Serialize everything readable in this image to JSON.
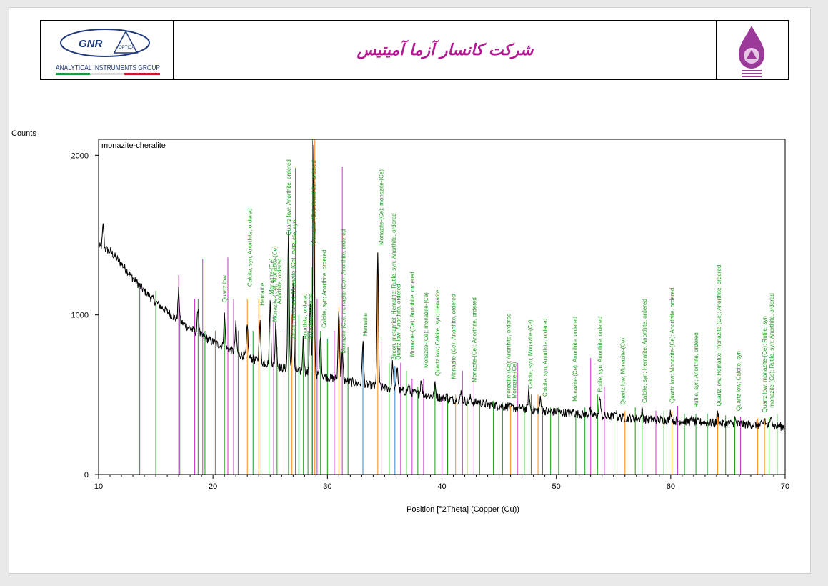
{
  "header": {
    "logo_brand": "GNR",
    "logo_sub": "OPTICA",
    "logo_group": "ANALYTICAL INSTRUMENTS GROUP",
    "company_name": "شرکت کانسار آزما آمیتیس"
  },
  "chart_data": {
    "type": "line",
    "title": "monazite-cheralite",
    "ylabel": "Counts",
    "xlabel": "Position [°2Theta] (Copper (Cu))",
    "xlim": [
      10,
      70
    ],
    "ylim": [
      0,
      2000
    ],
    "xticks": [
      10,
      20,
      30,
      40,
      50,
      60,
      70
    ],
    "yticks": [
      0,
      1000,
      2000
    ],
    "grid": false,
    "colors": {
      "trace": "#000000",
      "reference": "#1e9a1e",
      "label": "#1e9a1e"
    },
    "background_points": [
      [
        10,
        1430
      ],
      [
        11,
        1400
      ],
      [
        12,
        1320
      ],
      [
        13,
        1230
      ],
      [
        14,
        1150
      ],
      [
        15,
        1080
      ],
      [
        16,
        1020
      ],
      [
        17,
        965
      ],
      [
        18,
        915
      ],
      [
        19,
        870
      ],
      [
        20,
        830
      ],
      [
        21,
        795
      ],
      [
        22,
        765
      ],
      [
        23,
        735
      ],
      [
        24,
        710
      ],
      [
        25,
        690
      ],
      [
        26,
        670
      ],
      [
        28,
        640
      ],
      [
        30,
        610
      ],
      [
        32,
        580
      ],
      [
        34,
        555
      ],
      [
        36,
        530
      ],
      [
        38,
        505
      ],
      [
        40,
        480
      ],
      [
        42,
        460
      ],
      [
        44,
        440
      ],
      [
        46,
        420
      ],
      [
        48,
        405
      ],
      [
        50,
        390
      ],
      [
        52,
        378
      ],
      [
        54,
        365
      ],
      [
        56,
        355
      ],
      [
        58,
        345
      ],
      [
        60,
        338
      ],
      [
        62,
        330
      ],
      [
        64,
        322
      ],
      [
        66,
        316
      ],
      [
        68,
        310
      ],
      [
        70,
        300
      ]
    ],
    "peaks": [
      {
        "x": 10.4,
        "y": 1560
      },
      {
        "x": 17.0,
        "y": 1150
      },
      {
        "x": 18.7,
        "y": 1050
      },
      {
        "x": 21.0,
        "y": 1000
      },
      {
        "x": 22.0,
        "y": 940
      },
      {
        "x": 23.0,
        "y": 930
      },
      {
        "x": 24.1,
        "y": 960
      },
      {
        "x": 25.0,
        "y": 1080
      },
      {
        "x": 25.5,
        "y": 950
      },
      {
        "x": 26.6,
        "y": 1520
      },
      {
        "x": 27.0,
        "y": 1200
      },
      {
        "x": 27.9,
        "y": 860
      },
      {
        "x": 28.5,
        "y": 1100
      },
      {
        "x": 28.8,
        "y": 2050
      },
      {
        "x": 29.4,
        "y": 880
      },
      {
        "x": 31.0,
        "y": 1050
      },
      {
        "x": 31.3,
        "y": 760
      },
      {
        "x": 33.1,
        "y": 840
      },
      {
        "x": 34.4,
        "y": 1380
      },
      {
        "x": 35.7,
        "y": 700
      },
      {
        "x": 36.1,
        "y": 680
      },
      {
        "x": 37.1,
        "y": 560
      },
      {
        "x": 38.2,
        "y": 600
      },
      {
        "x": 39.4,
        "y": 560
      },
      {
        "x": 40.4,
        "y": 500
      },
      {
        "x": 41.7,
        "y": 520
      },
      {
        "x": 42.5,
        "y": 480
      },
      {
        "x": 43.2,
        "y": 460
      },
      {
        "x": 45.8,
        "y": 430
      },
      {
        "x": 46.9,
        "y": 420
      },
      {
        "x": 47.6,
        "y": 520
      },
      {
        "x": 48.6,
        "y": 470
      },
      {
        "x": 50.1,
        "y": 410
      },
      {
        "x": 51.5,
        "y": 400
      },
      {
        "x": 52.9,
        "y": 410
      },
      {
        "x": 53.8,
        "y": 490
      },
      {
        "x": 55.2,
        "y": 400
      },
      {
        "x": 57.5,
        "y": 400
      },
      {
        "x": 60.0,
        "y": 400
      },
      {
        "x": 61.9,
        "y": 360
      },
      {
        "x": 64.1,
        "y": 390
      },
      {
        "x": 65.6,
        "y": 350
      },
      {
        "x": 68.2,
        "y": 350
      },
      {
        "x": 68.8,
        "y": 380
      }
    ],
    "reference_lines": [
      {
        "x": 13.6,
        "h": 1200,
        "c": "#1e9a1e"
      },
      {
        "x": 15.0,
        "h": 1150,
        "c": "#1e9a1e"
      },
      {
        "x": 17.0,
        "h": 1250,
        "c": "#cc33cc"
      },
      {
        "x": 17.1,
        "h": 1000,
        "c": "#1e9a1e"
      },
      {
        "x": 18.4,
        "h": 1100,
        "c": "#cc33cc"
      },
      {
        "x": 18.7,
        "h": 1100,
        "c": "#1e9a1e"
      },
      {
        "x": 19.1,
        "h": 1350,
        "c": "#cc33cc"
      },
      {
        "x": 19.3,
        "h": 900,
        "c": "#1e9a1e"
      },
      {
        "x": 20.2,
        "h": 900,
        "c": "#2e8bd6"
      },
      {
        "x": 21.0,
        "h": 1000,
        "c": "#1e9a1e"
      },
      {
        "x": 21.3,
        "h": 1360,
        "c": "#cc33cc"
      },
      {
        "x": 21.8,
        "h": 1100,
        "c": "#cc33cc"
      },
      {
        "x": 22.2,
        "h": 900,
        "c": "#1e9a1e"
      },
      {
        "x": 23.0,
        "h": 1100,
        "c": "#ff8c1a"
      },
      {
        "x": 23.5,
        "h": 900,
        "c": "#1e9a1e"
      },
      {
        "x": 24.0,
        "h": 1100,
        "c": "#ff8c1a"
      },
      {
        "x": 24.2,
        "h": 1000,
        "c": "#1e9a1e"
      },
      {
        "x": 24.9,
        "h": 900,
        "c": "#1e9a1e"
      },
      {
        "x": 25.3,
        "h": 1000,
        "c": "#cc33cc"
      },
      {
        "x": 25.6,
        "h": 800,
        "c": "#1e9a1e"
      },
      {
        "x": 26.2,
        "h": 900,
        "c": "#cc33cc"
      },
      {
        "x": 26.6,
        "h": 1500,
        "c": "#1e9a1e"
      },
      {
        "x": 26.9,
        "h": 1000,
        "c": "#ff8c1a"
      },
      {
        "x": 27.2,
        "h": 1920,
        "c": "#cc33cc"
      },
      {
        "x": 27.5,
        "h": 1000,
        "c": "#1e9a1e"
      },
      {
        "x": 27.9,
        "h": 850,
        "c": "#1e9a1e"
      },
      {
        "x": 28.3,
        "h": 900,
        "c": "#1e9a1e"
      },
      {
        "x": 28.6,
        "h": 1300,
        "c": "#1e9a1e"
      },
      {
        "x": 28.7,
        "h": 2100,
        "c": "#cc33cc"
      },
      {
        "x": 28.9,
        "h": 2100,
        "c": "#ff8c1a"
      },
      {
        "x": 29.1,
        "h": 1100,
        "c": "#cc33cc"
      },
      {
        "x": 29.4,
        "h": 900,
        "c": "#1e9a1e"
      },
      {
        "x": 30.0,
        "h": 850,
        "c": "#1e9a1e"
      },
      {
        "x": 30.6,
        "h": 900,
        "c": "#cc33cc"
      },
      {
        "x": 31.0,
        "h": 1050,
        "c": "#ff8c1a"
      },
      {
        "x": 31.3,
        "h": 1930,
        "c": "#cc33cc"
      },
      {
        "x": 31.8,
        "h": 800,
        "c": "#1e9a1e"
      },
      {
        "x": 33.1,
        "h": 800,
        "c": "#2e8bd6"
      },
      {
        "x": 34.4,
        "h": 1380,
        "c": "#ff8c1a"
      },
      {
        "x": 34.7,
        "h": 850,
        "c": "#cc33cc"
      },
      {
        "x": 35.4,
        "h": 700,
        "c": "#1e9a1e"
      },
      {
        "x": 35.9,
        "h": 680,
        "c": "#2e8bd6"
      },
      {
        "x": 36.4,
        "h": 700,
        "c": "#cc33cc"
      },
      {
        "x": 36.9,
        "h": 650,
        "c": "#1e9a1e"
      },
      {
        "x": 37.4,
        "h": 600,
        "c": "#cc33cc"
      },
      {
        "x": 37.9,
        "h": 550,
        "c": "#1e9a1e"
      },
      {
        "x": 38.4,
        "h": 600,
        "c": "#cc33cc"
      },
      {
        "x": 39.4,
        "h": 570,
        "c": "#1e9a1e"
      },
      {
        "x": 40.0,
        "h": 500,
        "c": "#cc33cc"
      },
      {
        "x": 40.5,
        "h": 500,
        "c": "#1e9a1e"
      },
      {
        "x": 41.2,
        "h": 500,
        "c": "#ff8c1a"
      },
      {
        "x": 41.8,
        "h": 650,
        "c": "#cc33cc"
      },
      {
        "x": 42.2,
        "h": 480,
        "c": "#1e9a1e"
      },
      {
        "x": 42.8,
        "h": 700,
        "c": "#cc33cc"
      },
      {
        "x": 43.3,
        "h": 460,
        "c": "#1e9a1e"
      },
      {
        "x": 44.5,
        "h": 460,
        "c": "#1e9a1e"
      },
      {
        "x": 45.3,
        "h": 450,
        "c": "#1e9a1e"
      },
      {
        "x": 46.0,
        "h": 430,
        "c": "#ff8c1a"
      },
      {
        "x": 46.6,
        "h": 700,
        "c": "#cc33cc"
      },
      {
        "x": 47.2,
        "h": 430,
        "c": "#1e9a1e"
      },
      {
        "x": 47.8,
        "h": 500,
        "c": "#1e9a1e"
      },
      {
        "x": 48.4,
        "h": 500,
        "c": "#ff8c1a"
      },
      {
        "x": 48.8,
        "h": 430,
        "c": "#1e9a1e"
      },
      {
        "x": 49.5,
        "h": 420,
        "c": "#1e9a1e"
      },
      {
        "x": 50.2,
        "h": 420,
        "c": "#1e9a1e"
      },
      {
        "x": 51.7,
        "h": 400,
        "c": "#1e9a1e"
      },
      {
        "x": 52.5,
        "h": 420,
        "c": "#1e9a1e"
      },
      {
        "x": 53.0,
        "h": 730,
        "c": "#cc33cc"
      },
      {
        "x": 53.6,
        "h": 500,
        "c": "#1e9a1e"
      },
      {
        "x": 54.2,
        "h": 550,
        "c": "#cc33cc"
      },
      {
        "x": 55.3,
        "h": 400,
        "c": "#1e9a1e"
      },
      {
        "x": 56.0,
        "h": 400,
        "c": "#ff8c1a"
      },
      {
        "x": 56.9,
        "h": 420,
        "c": "#1e9a1e"
      },
      {
        "x": 57.5,
        "h": 420,
        "c": "#1e9a1e"
      },
      {
        "x": 58.7,
        "h": 400,
        "c": "#cc33cc"
      },
      {
        "x": 59.4,
        "h": 400,
        "c": "#1e9a1e"
      },
      {
        "x": 60.1,
        "h": 400,
        "c": "#ff8c1a"
      },
      {
        "x": 60.6,
        "h": 430,
        "c": "#cc33cc"
      },
      {
        "x": 61.2,
        "h": 380,
        "c": "#1e9a1e"
      },
      {
        "x": 62.2,
        "h": 380,
        "c": "#1e9a1e"
      },
      {
        "x": 63.2,
        "h": 380,
        "c": "#1e9a1e"
      },
      {
        "x": 64.1,
        "h": 400,
        "c": "#ff8c1a"
      },
      {
        "x": 64.8,
        "h": 370,
        "c": "#1e9a1e"
      },
      {
        "x": 65.6,
        "h": 360,
        "c": "#1e9a1e"
      },
      {
        "x": 66.1,
        "h": 360,
        "c": "#cc33cc"
      },
      {
        "x": 67.6,
        "h": 350,
        "c": "#ff8c1a"
      },
      {
        "x": 68.2,
        "h": 350,
        "c": "#ff8c1a"
      },
      {
        "x": 68.6,
        "h": 360,
        "c": "#1e9a1e"
      },
      {
        "x": 69.3,
        "h": 380,
        "c": "#1e9a1e"
      }
    ],
    "annotations": [
      {
        "x": 21.0,
        "y": 1060,
        "text": "Quartz low"
      },
      {
        "x": 23.2,
        "y": 1160,
        "text": "Calcite, syn; Anorthite, ordered"
      },
      {
        "x": 24.3,
        "y": 1040,
        "text": "Hematite"
      },
      {
        "x": 25.1,
        "y": 1110,
        "text": "Monazite-(Ce)"
      },
      {
        "x": 25.4,
        "y": 940,
        "text": "Monazite-(Ce); Monazite-(Ce)"
      },
      {
        "x": 25.8,
        "y": 1050,
        "text": "Anorthite, ordered"
      },
      {
        "x": 26.6,
        "y": 1480,
        "text": "Quartz low; Anorthite, ordered"
      },
      {
        "x": 27.1,
        "y": 1410,
        "text": "Rutile, syn"
      },
      {
        "x": 27.0,
        "y": 830,
        "text": "Zircon, metamict; Monazite-(Ce), syn"
      },
      {
        "x": 28.0,
        "y": 830,
        "text": "Anorthite, ordered"
      },
      {
        "x": 28.5,
        "y": 830,
        "text": "Anorthite, ordered"
      },
      {
        "x": 28.8,
        "y": 1420,
        "text": "Monazite-(Ce); Anorthite, ordered"
      },
      {
        "x": 29.7,
        "y": 900,
        "text": "Calcite, syn; Anorthite, ordered"
      },
      {
        "x": 31.4,
        "y": 740,
        "text": "Monazite-(Ce); monazite-(Ce); Anorthite, ordered"
      },
      {
        "x": 33.3,
        "y": 850,
        "text": "Hematite"
      },
      {
        "x": 34.7,
        "y": 1420,
        "text": "Monazite-(Ce); monazite-(Ce)"
      },
      {
        "x": 35.8,
        "y": 700,
        "text": "Zircon, metamict; Hematite; Rutile, syn; Anorthite, ordered"
      },
      {
        "x": 36.2,
        "y": 700,
        "text": "Quartz low; Anorthite, ordered"
      },
      {
        "x": 37.4,
        "y": 720,
        "text": "Monazite-(Ce); Anorthite, ordered"
      },
      {
        "x": 38.6,
        "y": 650,
        "text": "Monazite-(Ce); monazite-(Ce)"
      },
      {
        "x": 39.6,
        "y": 600,
        "text": "Quartz low; Calcite, syn; Hematite"
      },
      {
        "x": 41.0,
        "y": 580,
        "text": "Monazite-(Ce); Anorthite, ordered"
      },
      {
        "x": 42.8,
        "y": 560,
        "text": "Monazite-(Ce); Anorthite, ordered"
      },
      {
        "x": 45.8,
        "y": 460,
        "text": "monazite-(Ce); Anorthite, ordered"
      },
      {
        "x": 46.3,
        "y": 460,
        "text": "Monazite-(Ce)"
      },
      {
        "x": 47.7,
        "y": 520,
        "text": "Calcite, syn; Monazite-(Ce)"
      },
      {
        "x": 49.0,
        "y": 470,
        "text": "Calcite, syn; Anorthite, ordered"
      },
      {
        "x": 51.6,
        "y": 440,
        "text": "Monazite-(Ce); Anorthite, ordered"
      },
      {
        "x": 53.8,
        "y": 500,
        "text": "Rutile, syn; Anorthite, ordered"
      },
      {
        "x": 55.8,
        "y": 420,
        "text": "Quartz low; Monazite-(Ce)"
      },
      {
        "x": 57.7,
        "y": 430,
        "text": "Calcite, syn; Hematite; Anorthite, ordered"
      },
      {
        "x": 60.1,
        "y": 430,
        "text": "Quartz low; Monazite-(Ce); Anorthite, ordered"
      },
      {
        "x": 62.2,
        "y": 400,
        "text": "Rutile, syn; Anorthite, ordered"
      },
      {
        "x": 64.2,
        "y": 410,
        "text": "Quartz low; Hematite; monazite-(Ce); Anorthite, ordered"
      },
      {
        "x": 65.9,
        "y": 380,
        "text": "Quartz low; Calcite, syn"
      },
      {
        "x": 68.2,
        "y": 370,
        "text": "Quartz low; monazite-(Ce); Rutile, syn"
      },
      {
        "x": 68.8,
        "y": 400,
        "text": "monazite-(Ce); Rutile, syn; Anorthite, ordered"
      }
    ]
  }
}
